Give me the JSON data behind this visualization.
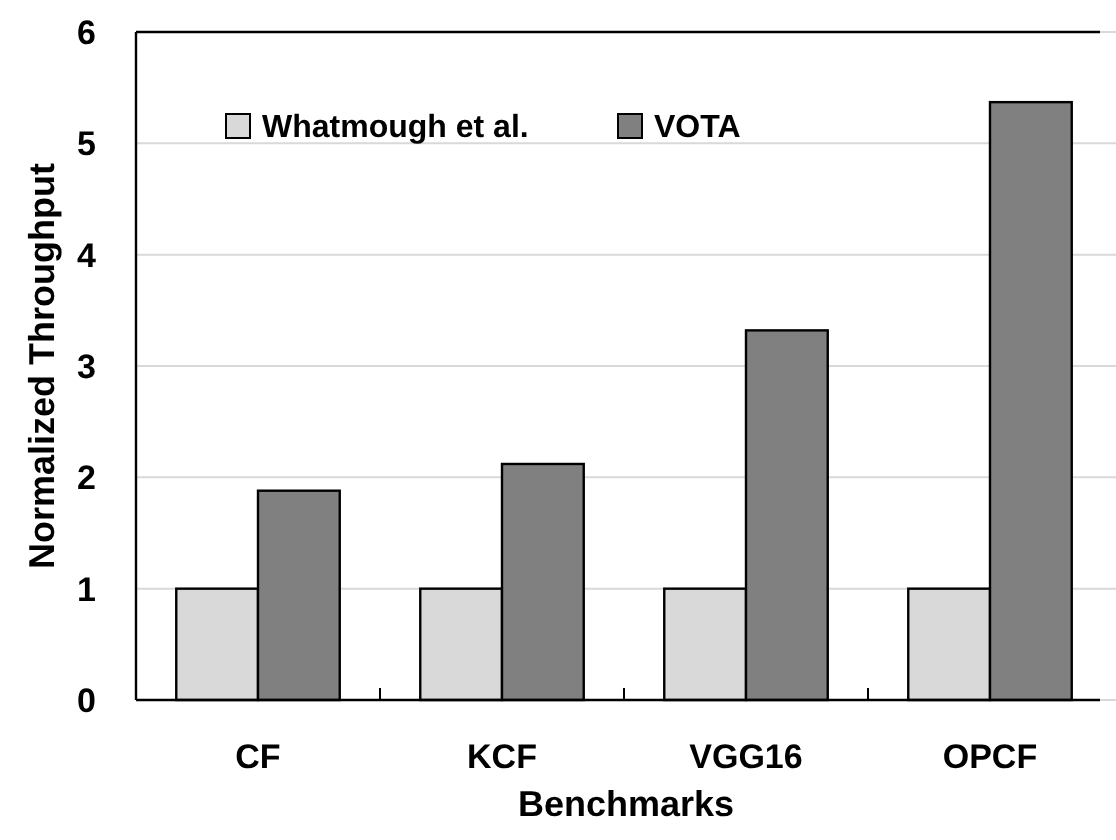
{
  "chart_data": {
    "type": "bar",
    "xlabel": "Benchmarks",
    "ylabel": "Normalized Throughput",
    "categories": [
      "CF",
      "KCF",
      "VGG16",
      "OPCF"
    ],
    "series": [
      {
        "name": "Whatmough et al.",
        "color": "#d9d9d9",
        "values": [
          1,
          1,
          1,
          1
        ]
      },
      {
        "name": "VOTA",
        "color": "#808080",
        "values": [
          1.88,
          2.12,
          3.32,
          5.37
        ]
      }
    ],
    "ylim": [
      0,
      6
    ],
    "yticks": [
      0,
      1,
      2,
      3,
      4,
      5,
      6
    ],
    "grid": "y",
    "legend": "top left"
  }
}
